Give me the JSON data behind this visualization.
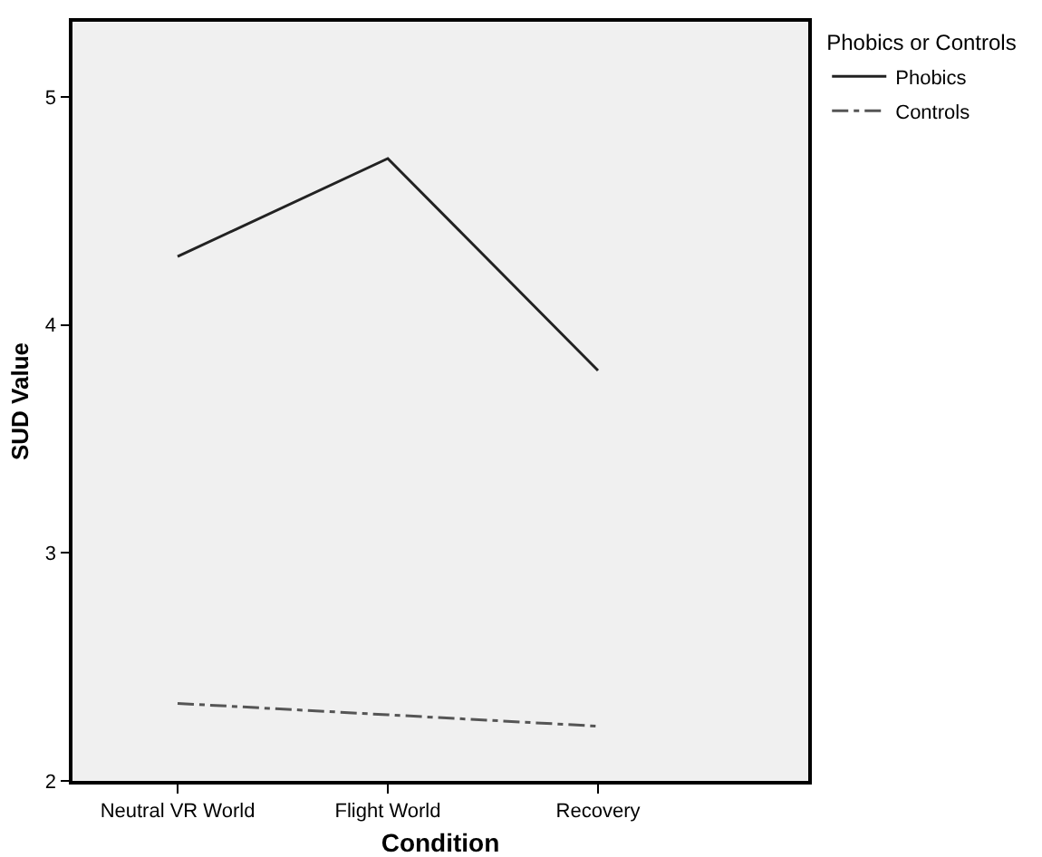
{
  "chart_data": {
    "type": "line",
    "xlabel": "Condition",
    "ylabel": "SUD Value",
    "legend_title": "Phobics or Controls",
    "categories": [
      "Neutral VR World",
      "Flight World",
      "Recovery"
    ],
    "series": [
      {
        "name": "Phobics",
        "color": "#222222",
        "values": [
          4.3,
          4.73,
          3.8
        ],
        "line_style": "solid"
      },
      {
        "name": "Controls",
        "color": "#555555",
        "values": [
          2.34,
          2.29,
          2.24
        ],
        "line_style": "dashed"
      }
    ],
    "ylim": [
      2,
      5.33
    ],
    "yticks": [
      2,
      3,
      4,
      5
    ],
    "grid": false,
    "legend": "top right",
    "marker": "none"
  }
}
